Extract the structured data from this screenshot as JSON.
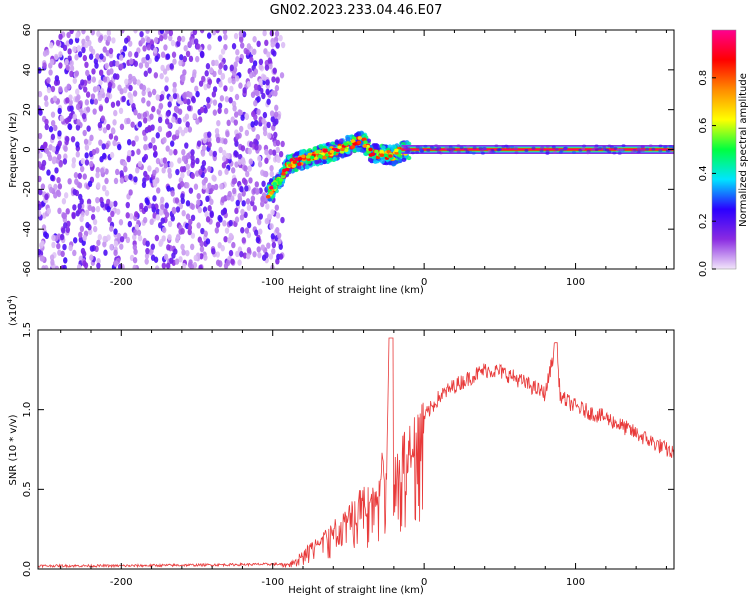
{
  "figure_title": "GN02.2023.233.04.46.E07",
  "chart_data": [
    {
      "type": "heatmap",
      "xlabel": "Height of straight line (km)",
      "ylabel": "Frequency (Hz)",
      "xlim": [
        -255,
        165
      ],
      "ylim": [
        -60,
        60
      ],
      "xticks": [
        -200,
        -100,
        0,
        100
      ],
      "xtick_labels": [
        "-200",
        "-100",
        "0",
        "100"
      ],
      "yticks": [
        -60,
        -40,
        -20,
        0,
        20,
        40,
        60
      ],
      "ytick_labels": [
        "-60",
        "-40",
        "-20",
        "0",
        "20",
        "40",
        "60"
      ],
      "colorbar": {
        "label": "Normalized spectral amplitude",
        "range": [
          0,
          1
        ],
        "ticks": [
          0.0,
          0.2,
          0.4,
          0.6,
          0.8
        ],
        "tick_labels": [
          "0.0",
          "0.2",
          "0.4",
          "0.6",
          "0.8"
        ],
        "colormap": [
          "#f2e6fa",
          "#8a2be2",
          "#2b00ff",
          "#00e5ff",
          "#00ff40",
          "#ffff00",
          "#ff8c00",
          "#ff0000",
          "#ff0090"
        ]
      },
      "noise_region_x": [
        -255,
        -93
      ],
      "signal_track": {
        "x": [
          -103,
          -95,
          -90,
          -85,
          -80,
          -70,
          -60,
          -50,
          -45,
          -40,
          -35,
          -30,
          -25,
          -20,
          -15,
          -10,
          -5,
          0,
          50,
          100,
          165
        ],
        "y": [
          -22,
          -15,
          -8,
          -6,
          -5,
          -3,
          -1,
          2,
          4,
          4,
          -2,
          -2,
          -3,
          -3,
          -1,
          0,
          0,
          0,
          0,
          0,
          0
        ]
      },
      "carrier_line": {
        "x": [
          -15,
          165
        ],
        "y": 0
      }
    },
    {
      "type": "line",
      "xlabel": "Height of straight line (km)",
      "ylabel": "SNR (10 * v/v)",
      "y_multiplier": "(x10",
      "y_multiplier_exp": "4",
      "y_multiplier_close": ")",
      "xlim": [
        -255,
        165
      ],
      "ylim": [
        0,
        1.5
      ],
      "xticks": [
        -200,
        -100,
        0,
        100
      ],
      "xtick_labels": [
        "-200",
        "-100",
        "0",
        "100"
      ],
      "yticks": [
        0.0,
        0.5,
        1.0,
        1.5
      ],
      "ytick_labels": [
        "0.0",
        "0.5",
        "1.0",
        "1.5"
      ],
      "series": [
        {
          "color": "#e83a3a",
          "x": [
            -255,
            -200,
            -150,
            -100,
            -90,
            -85,
            -80,
            -70,
            -60,
            -50,
            -40,
            -30,
            -25,
            -22,
            -20,
            -15,
            -10,
            -5,
            0,
            10,
            20,
            30,
            40,
            50,
            60,
            70,
            80,
            87,
            90,
            100,
            110,
            120,
            130,
            140,
            150,
            160,
            165
          ],
          "y": [
            0.02,
            0.02,
            0.025,
            0.03,
            0.03,
            0.06,
            0.1,
            0.18,
            0.25,
            0.35,
            0.45,
            0.55,
            0.7,
            1.45,
            0.6,
            0.7,
            0.78,
            0.9,
            0.95,
            1.08,
            1.15,
            1.2,
            1.25,
            1.24,
            1.2,
            1.15,
            1.1,
            1.42,
            1.08,
            1.02,
            0.98,
            0.95,
            0.9,
            0.85,
            0.8,
            0.75,
            0.72
          ]
        }
      ]
    }
  ]
}
